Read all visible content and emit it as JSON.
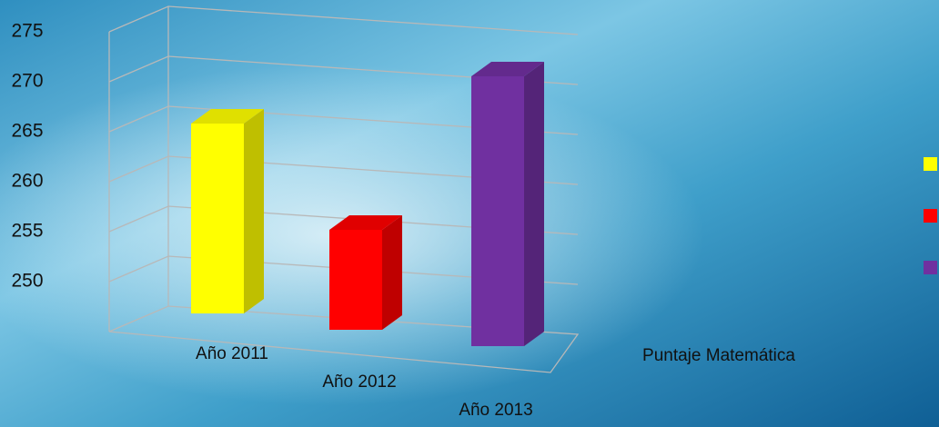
{
  "chart_data": {
    "type": "bar3d",
    "categories": [
      "Año 2011",
      "Año 2012",
      "Año 2013"
    ],
    "values": [
      264,
      255,
      272
    ],
    "colors": [
      "#ffff00",
      "#ff0000",
      "#7030a0"
    ],
    "series_label": "Puntaje Matemática",
    "ylim": [
      245,
      275
    ],
    "yticks": [
      250,
      255,
      260,
      265,
      270,
      275
    ],
    "grid": true
  }
}
